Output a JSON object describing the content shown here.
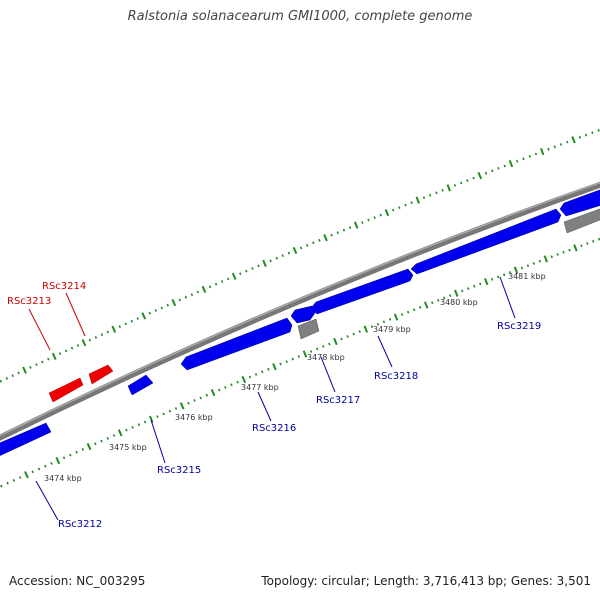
{
  "title": "Ralstonia solanacearum GMI1000, complete genome",
  "footer": {
    "accession": "Accession: NC_003295",
    "summary": "Topology: circular; Length: 3,716,413 bp; Genes: 3,501"
  },
  "colors": {
    "forward_gene": "#0000ff",
    "reverse_gene": "#ff0000",
    "other_feature": "#808080",
    "backbone": "#888888",
    "tick": "#228b22",
    "forward_label": "#0000a0",
    "reverse_label": "#cc0000"
  },
  "kbp_labels": [
    "3474 kbp",
    "3475 kbp",
    "3476 kbp",
    "3477 kbp",
    "3478 kbp",
    "3479 kbp",
    "3480 kbp",
    "3481 kbp"
  ],
  "genes": [
    {
      "name": "RSc3212",
      "strand": "forward"
    },
    {
      "name": "RSc3213",
      "strand": "reverse"
    },
    {
      "name": "RSc3214",
      "strand": "reverse"
    },
    {
      "name": "RSc3215",
      "strand": "forward"
    },
    {
      "name": "RSc3216",
      "strand": "forward"
    },
    {
      "name": "RSc3217",
      "strand": "forward"
    },
    {
      "name": "RSc3218",
      "strand": "forward"
    },
    {
      "name": "RSc3219",
      "strand": "forward"
    }
  ]
}
